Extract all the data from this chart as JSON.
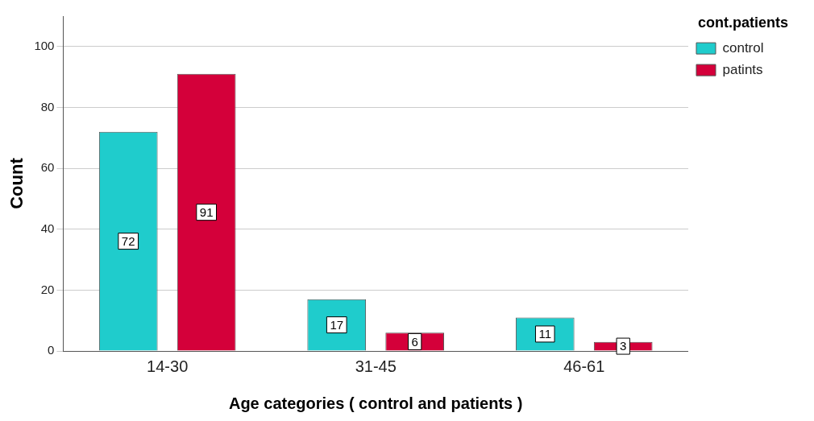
{
  "chart_data": {
    "type": "bar",
    "xlabel": "Age categories ( control and patients )",
    "ylabel": "Count",
    "legend_title": "cont.patients",
    "categories": [
      "14-30",
      "31-45",
      "46-61"
    ],
    "series": [
      {
        "name": "control",
        "color": "#1fcccc",
        "values": [
          72,
          17,
          11
        ]
      },
      {
        "name": "patints",
        "color": "#d4003a",
        "values": [
          91,
          6,
          3
        ]
      }
    ],
    "ylim": [
      0,
      110
    ],
    "yticks": [
      0,
      20,
      40,
      60,
      80,
      100
    ],
    "grid": "y",
    "legend": "top right",
    "data_labels": true
  }
}
